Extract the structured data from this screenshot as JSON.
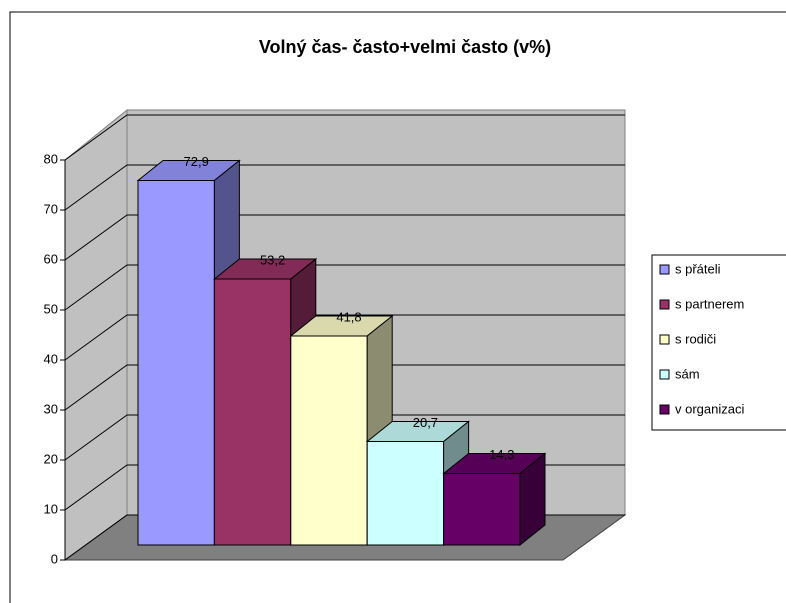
{
  "chart_data": {
    "type": "bar3d",
    "title": "Volný čas- často+velmi často (v%)",
    "categories": [
      "s přáteli",
      "s partnerem",
      "s rodiči",
      "sám",
      "v organizaci"
    ],
    "values": [
      72.9,
      53.2,
      41.8,
      20.7,
      14.3
    ],
    "value_labels": [
      "72,9",
      "53,2",
      "41,8",
      "20,7",
      "14,3"
    ],
    "colors": [
      "#9999ff",
      "#993366",
      "#ffffcc",
      "#ccffff",
      "#660066"
    ],
    "ylim": [
      0,
      80
    ],
    "yticks": [
      0,
      10,
      20,
      30,
      40,
      50,
      60,
      70,
      80
    ],
    "grid": true,
    "legend": "right"
  }
}
